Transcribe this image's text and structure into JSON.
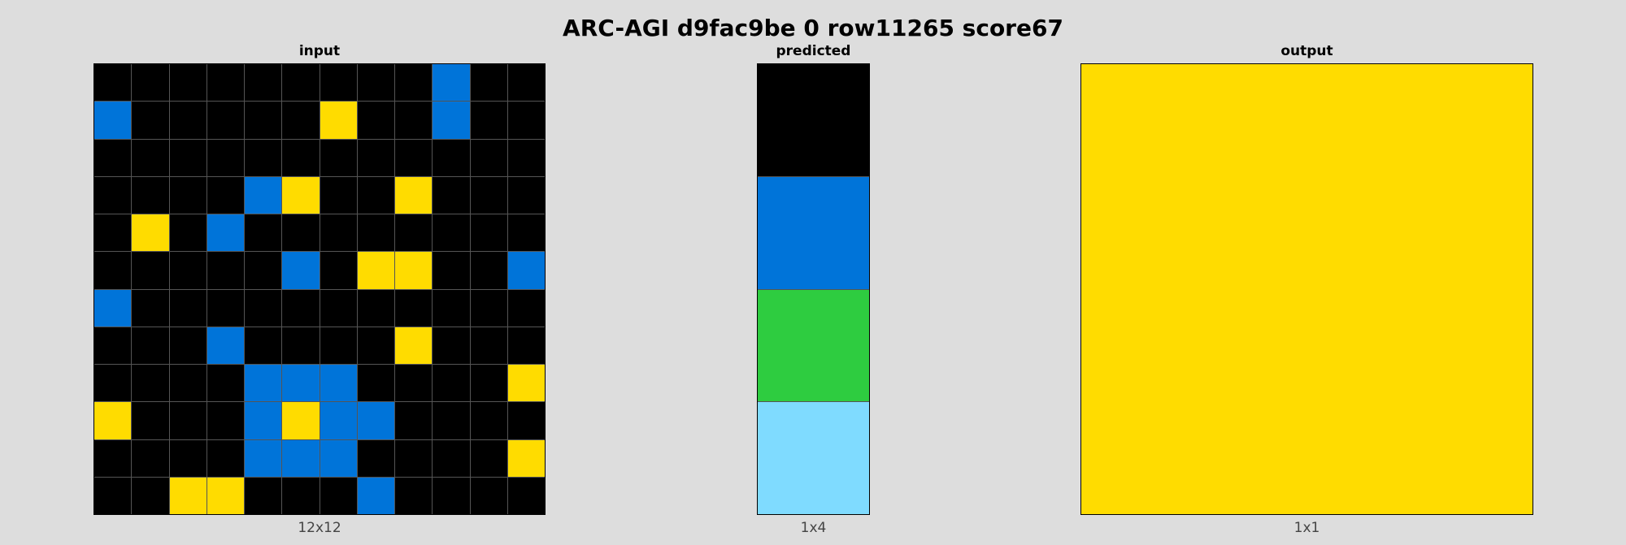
{
  "title": "ARC-AGI d9fac9be 0 row11265 score67",
  "palette": {
    "0": "#000000",
    "1": "#0074d9",
    "3": "#2ecc40",
    "4": "#ffdc00",
    "8": "#7fdbff"
  },
  "panels": {
    "input": {
      "label": "input",
      "dims": "12x12",
      "grid": [
        [
          0,
          0,
          0,
          0,
          0,
          0,
          0,
          0,
          0,
          1,
          0,
          0
        ],
        [
          1,
          0,
          0,
          0,
          0,
          0,
          4,
          0,
          0,
          1,
          0,
          0
        ],
        [
          0,
          0,
          0,
          0,
          0,
          0,
          0,
          0,
          0,
          0,
          0,
          0
        ],
        [
          0,
          0,
          0,
          0,
          1,
          4,
          0,
          0,
          4,
          0,
          0,
          0
        ],
        [
          0,
          4,
          0,
          1,
          0,
          0,
          0,
          0,
          0,
          0,
          0,
          0
        ],
        [
          0,
          0,
          0,
          0,
          0,
          1,
          0,
          4,
          4,
          0,
          0,
          1
        ],
        [
          1,
          0,
          0,
          0,
          0,
          0,
          0,
          0,
          0,
          0,
          0,
          0
        ],
        [
          0,
          0,
          0,
          1,
          0,
          0,
          0,
          0,
          4,
          0,
          0,
          0
        ],
        [
          0,
          0,
          0,
          0,
          1,
          1,
          1,
          0,
          0,
          0,
          0,
          4
        ],
        [
          4,
          0,
          0,
          0,
          1,
          4,
          1,
          1,
          0,
          0,
          0,
          0
        ],
        [
          0,
          0,
          0,
          0,
          1,
          1,
          1,
          0,
          0,
          0,
          0,
          4
        ],
        [
          0,
          0,
          4,
          4,
          0,
          0,
          0,
          1,
          0,
          0,
          0,
          0
        ]
      ]
    },
    "predicted": {
      "label": "predicted",
      "dims": "1x4",
      "grid": [
        [
          0
        ],
        [
          1
        ],
        [
          3
        ],
        [
          8
        ]
      ]
    },
    "output": {
      "label": "output",
      "dims": "1x1",
      "grid": [
        [
          4
        ]
      ]
    }
  }
}
